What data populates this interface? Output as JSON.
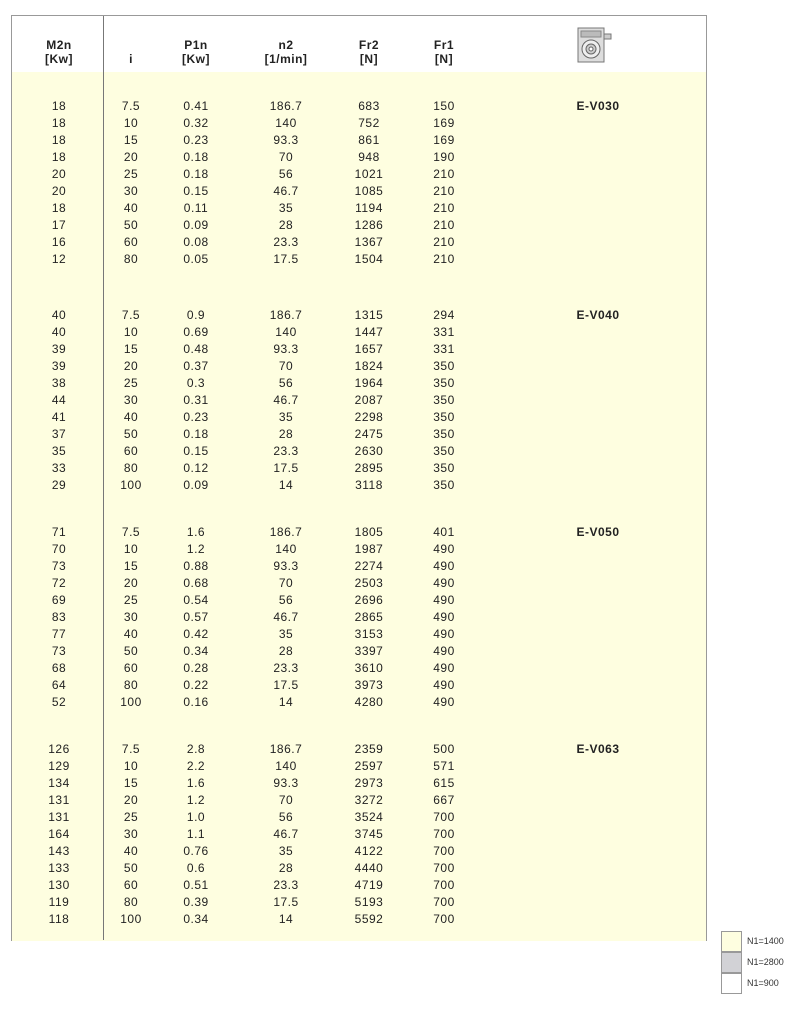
{
  "header": {
    "cols": [
      {
        "l1": "M2n",
        "l2": "[Kw]"
      },
      {
        "l1": "",
        "l2": "i"
      },
      {
        "l1": "P1n",
        "l2": "[Kw]"
      },
      {
        "l1": "n2",
        "l2": "[1/min]"
      },
      {
        "l1": "Fr2",
        "l2": "[N]"
      },
      {
        "l1": "Fr1",
        "l2": "[N]"
      }
    ],
    "icon": "gearbox-icon"
  },
  "sections": [
    {
      "model": "E-V030",
      "rows": [
        [
          "18",
          "7.5",
          "0.41",
          "186.7",
          "683",
          "150"
        ],
        [
          "18",
          "10",
          "0.32",
          "140",
          "752",
          "169"
        ],
        [
          "18",
          "15",
          "0.23",
          "93.3",
          "861",
          "169"
        ],
        [
          "18",
          "20",
          "0.18",
          "70",
          "948",
          "190"
        ],
        [
          "20",
          "25",
          "0.18",
          "56",
          "1021",
          "210"
        ],
        [
          "20",
          "30",
          "0.15",
          "46.7",
          "1085",
          "210"
        ],
        [
          "18",
          "40",
          "0.11",
          "35",
          "1194",
          "210"
        ],
        [
          "17",
          "50",
          "0.09",
          "28",
          "1286",
          "210"
        ],
        [
          "16",
          "60",
          "0.08",
          "23.3",
          "1367",
          "210"
        ],
        [
          "12",
          "80",
          "0.05",
          "17.5",
          "1504",
          "210"
        ]
      ]
    },
    {
      "model": "E-V040",
      "rows": [
        [
          "40",
          "7.5",
          "0.9",
          "186.7",
          "1315",
          "294"
        ],
        [
          "40",
          "10",
          "0.69",
          "140",
          "1447",
          "331"
        ],
        [
          "39",
          "15",
          "0.48",
          "93.3",
          "1657",
          "331"
        ],
        [
          "39",
          "20",
          "0.37",
          "70",
          "1824",
          "350"
        ],
        [
          "38",
          "25",
          "0.3",
          "56",
          "1964",
          "350"
        ],
        [
          "44",
          "30",
          "0.31",
          "46.7",
          "2087",
          "350"
        ],
        [
          "41",
          "40",
          "0.23",
          "35",
          "2298",
          "350"
        ],
        [
          "37",
          "50",
          "0.18",
          "28",
          "2475",
          "350"
        ],
        [
          "35",
          "60",
          "0.15",
          "23.3",
          "2630",
          "350"
        ],
        [
          "33",
          "80",
          "0.12",
          "17.5",
          "2895",
          "350"
        ],
        [
          "29",
          "100",
          "0.09",
          "14",
          "3118",
          "350"
        ]
      ]
    },
    {
      "model": "E-V050",
      "rows": [
        [
          "71",
          "7.5",
          "1.6",
          "186.7",
          "1805",
          "401"
        ],
        [
          "70",
          "10",
          "1.2",
          "140",
          "1987",
          "490"
        ],
        [
          "73",
          "15",
          "0.88",
          "93.3",
          "2274",
          "490"
        ],
        [
          "72",
          "20",
          "0.68",
          "70",
          "2503",
          "490"
        ],
        [
          "69",
          "25",
          "0.54",
          "56",
          "2696",
          "490"
        ],
        [
          "83",
          "30",
          "0.57",
          "46.7",
          "2865",
          "490"
        ],
        [
          "77",
          "40",
          "0.42",
          "35",
          "3153",
          "490"
        ],
        [
          "73",
          "50",
          "0.34",
          "28",
          "3397",
          "490"
        ],
        [
          "68",
          "60",
          "0.28",
          "23.3",
          "3610",
          "490"
        ],
        [
          "64",
          "80",
          "0.22",
          "17.5",
          "3973",
          "490"
        ],
        [
          "52",
          "100",
          "0.16",
          "14",
          "4280",
          "490"
        ]
      ]
    },
    {
      "model": "E-V063",
      "rows": [
        [
          "126",
          "7.5",
          "2.8",
          "186.7",
          "2359",
          "500"
        ],
        [
          "129",
          "10",
          "2.2",
          "140",
          "2597",
          "571"
        ],
        [
          "134",
          "15",
          "1.6",
          "93.3",
          "2973",
          "615"
        ],
        [
          "131",
          "20",
          "1.2",
          "70",
          "3272",
          "667"
        ],
        [
          "131",
          "25",
          "1.0",
          "56",
          "3524",
          "700"
        ],
        [
          "164",
          "30",
          "1.1",
          "46.7",
          "3745",
          "700"
        ],
        [
          "143",
          "40",
          "0.76",
          "35",
          "4122",
          "700"
        ],
        [
          "133",
          "50",
          "0.6",
          "28",
          "4440",
          "700"
        ],
        [
          "130",
          "60",
          "0.51",
          "23.3",
          "4719",
          "700"
        ],
        [
          "119",
          "80",
          "0.39",
          "17.5",
          "5193",
          "700"
        ],
        [
          "118",
          "100",
          "0.34",
          "14",
          "5592",
          "700"
        ]
      ]
    }
  ],
  "legend": [
    {
      "label": "N1=1400",
      "color": "#fefee0"
    },
    {
      "label": "N1=2800",
      "color": "#d2d2d6"
    },
    {
      "label": "N1=900",
      "color": "#ffffff"
    }
  ]
}
